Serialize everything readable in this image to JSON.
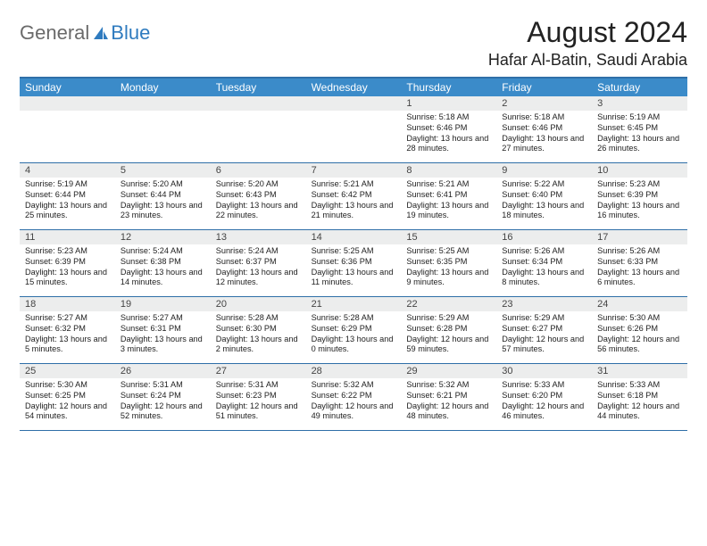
{
  "logo": {
    "general": "General",
    "blue": "Blue"
  },
  "colors": {
    "header_bar": "#3b8bc9",
    "rule": "#2f6fa8",
    "num_bg": "#eceded",
    "text": "#222222",
    "logo_grey": "#6a6a6a",
    "logo_blue": "#2f7bbf"
  },
  "title": "August 2024",
  "location": "Hafar Al-Batin, Saudi Arabia",
  "weekdays": [
    "Sunday",
    "Monday",
    "Tuesday",
    "Wednesday",
    "Thursday",
    "Friday",
    "Saturday"
  ],
  "weeks": [
    [
      {
        "n": "",
        "sunrise": "",
        "sunset": "",
        "daylight": ""
      },
      {
        "n": "",
        "sunrise": "",
        "sunset": "",
        "daylight": ""
      },
      {
        "n": "",
        "sunrise": "",
        "sunset": "",
        "daylight": ""
      },
      {
        "n": "",
        "sunrise": "",
        "sunset": "",
        "daylight": ""
      },
      {
        "n": "1",
        "sunrise": "Sunrise: 5:18 AM",
        "sunset": "Sunset: 6:46 PM",
        "daylight": "Daylight: 13 hours and 28 minutes."
      },
      {
        "n": "2",
        "sunrise": "Sunrise: 5:18 AM",
        "sunset": "Sunset: 6:46 PM",
        "daylight": "Daylight: 13 hours and 27 minutes."
      },
      {
        "n": "3",
        "sunrise": "Sunrise: 5:19 AM",
        "sunset": "Sunset: 6:45 PM",
        "daylight": "Daylight: 13 hours and 26 minutes."
      }
    ],
    [
      {
        "n": "4",
        "sunrise": "Sunrise: 5:19 AM",
        "sunset": "Sunset: 6:44 PM",
        "daylight": "Daylight: 13 hours and 25 minutes."
      },
      {
        "n": "5",
        "sunrise": "Sunrise: 5:20 AM",
        "sunset": "Sunset: 6:44 PM",
        "daylight": "Daylight: 13 hours and 23 minutes."
      },
      {
        "n": "6",
        "sunrise": "Sunrise: 5:20 AM",
        "sunset": "Sunset: 6:43 PM",
        "daylight": "Daylight: 13 hours and 22 minutes."
      },
      {
        "n": "7",
        "sunrise": "Sunrise: 5:21 AM",
        "sunset": "Sunset: 6:42 PM",
        "daylight": "Daylight: 13 hours and 21 minutes."
      },
      {
        "n": "8",
        "sunrise": "Sunrise: 5:21 AM",
        "sunset": "Sunset: 6:41 PM",
        "daylight": "Daylight: 13 hours and 19 minutes."
      },
      {
        "n": "9",
        "sunrise": "Sunrise: 5:22 AM",
        "sunset": "Sunset: 6:40 PM",
        "daylight": "Daylight: 13 hours and 18 minutes."
      },
      {
        "n": "10",
        "sunrise": "Sunrise: 5:23 AM",
        "sunset": "Sunset: 6:39 PM",
        "daylight": "Daylight: 13 hours and 16 minutes."
      }
    ],
    [
      {
        "n": "11",
        "sunrise": "Sunrise: 5:23 AM",
        "sunset": "Sunset: 6:39 PM",
        "daylight": "Daylight: 13 hours and 15 minutes."
      },
      {
        "n": "12",
        "sunrise": "Sunrise: 5:24 AM",
        "sunset": "Sunset: 6:38 PM",
        "daylight": "Daylight: 13 hours and 14 minutes."
      },
      {
        "n": "13",
        "sunrise": "Sunrise: 5:24 AM",
        "sunset": "Sunset: 6:37 PM",
        "daylight": "Daylight: 13 hours and 12 minutes."
      },
      {
        "n": "14",
        "sunrise": "Sunrise: 5:25 AM",
        "sunset": "Sunset: 6:36 PM",
        "daylight": "Daylight: 13 hours and 11 minutes."
      },
      {
        "n": "15",
        "sunrise": "Sunrise: 5:25 AM",
        "sunset": "Sunset: 6:35 PM",
        "daylight": "Daylight: 13 hours and 9 minutes."
      },
      {
        "n": "16",
        "sunrise": "Sunrise: 5:26 AM",
        "sunset": "Sunset: 6:34 PM",
        "daylight": "Daylight: 13 hours and 8 minutes."
      },
      {
        "n": "17",
        "sunrise": "Sunrise: 5:26 AM",
        "sunset": "Sunset: 6:33 PM",
        "daylight": "Daylight: 13 hours and 6 minutes."
      }
    ],
    [
      {
        "n": "18",
        "sunrise": "Sunrise: 5:27 AM",
        "sunset": "Sunset: 6:32 PM",
        "daylight": "Daylight: 13 hours and 5 minutes."
      },
      {
        "n": "19",
        "sunrise": "Sunrise: 5:27 AM",
        "sunset": "Sunset: 6:31 PM",
        "daylight": "Daylight: 13 hours and 3 minutes."
      },
      {
        "n": "20",
        "sunrise": "Sunrise: 5:28 AM",
        "sunset": "Sunset: 6:30 PM",
        "daylight": "Daylight: 13 hours and 2 minutes."
      },
      {
        "n": "21",
        "sunrise": "Sunrise: 5:28 AM",
        "sunset": "Sunset: 6:29 PM",
        "daylight": "Daylight: 13 hours and 0 minutes."
      },
      {
        "n": "22",
        "sunrise": "Sunrise: 5:29 AM",
        "sunset": "Sunset: 6:28 PM",
        "daylight": "Daylight: 12 hours and 59 minutes."
      },
      {
        "n": "23",
        "sunrise": "Sunrise: 5:29 AM",
        "sunset": "Sunset: 6:27 PM",
        "daylight": "Daylight: 12 hours and 57 minutes."
      },
      {
        "n": "24",
        "sunrise": "Sunrise: 5:30 AM",
        "sunset": "Sunset: 6:26 PM",
        "daylight": "Daylight: 12 hours and 56 minutes."
      }
    ],
    [
      {
        "n": "25",
        "sunrise": "Sunrise: 5:30 AM",
        "sunset": "Sunset: 6:25 PM",
        "daylight": "Daylight: 12 hours and 54 minutes."
      },
      {
        "n": "26",
        "sunrise": "Sunrise: 5:31 AM",
        "sunset": "Sunset: 6:24 PM",
        "daylight": "Daylight: 12 hours and 52 minutes."
      },
      {
        "n": "27",
        "sunrise": "Sunrise: 5:31 AM",
        "sunset": "Sunset: 6:23 PM",
        "daylight": "Daylight: 12 hours and 51 minutes."
      },
      {
        "n": "28",
        "sunrise": "Sunrise: 5:32 AM",
        "sunset": "Sunset: 6:22 PM",
        "daylight": "Daylight: 12 hours and 49 minutes."
      },
      {
        "n": "29",
        "sunrise": "Sunrise: 5:32 AM",
        "sunset": "Sunset: 6:21 PM",
        "daylight": "Daylight: 12 hours and 48 minutes."
      },
      {
        "n": "30",
        "sunrise": "Sunrise: 5:33 AM",
        "sunset": "Sunset: 6:20 PM",
        "daylight": "Daylight: 12 hours and 46 minutes."
      },
      {
        "n": "31",
        "sunrise": "Sunrise: 5:33 AM",
        "sunset": "Sunset: 6:18 PM",
        "daylight": "Daylight: 12 hours and 44 minutes."
      }
    ]
  ]
}
